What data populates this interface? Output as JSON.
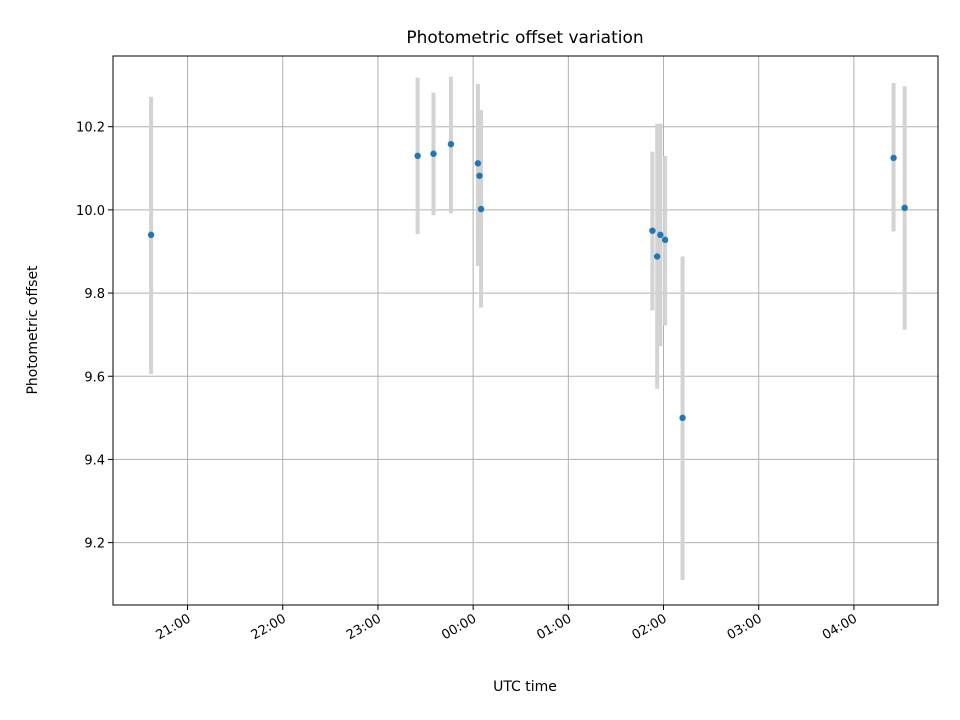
{
  "chart_data": {
    "type": "scatter",
    "title": "Photometric offset variation",
    "xlabel": "UTC time",
    "ylabel": "Photometric offset",
    "x_unit": "UTC time (hh:mm), times after midnight fall on the following day",
    "xlim": [
      "20:13",
      "04:53"
    ],
    "ylim": [
      9.05,
      10.37
    ],
    "x_ticks": [
      "21:00",
      "22:00",
      "23:00",
      "00:00",
      "01:00",
      "02:00",
      "03:00",
      "04:00"
    ],
    "y_ticks": [
      9.2,
      9.4,
      9.6,
      9.8,
      10.0,
      10.2
    ],
    "grid": true,
    "marker_color": "#1f77b4",
    "errorbar_color": "#d3d3d3",
    "points": [
      {
        "x": "20:37",
        "y": 9.94,
        "yerr_low": 9.605,
        "yerr_high": 10.272
      },
      {
        "x": "23:25",
        "y": 10.13,
        "yerr_low": 9.942,
        "yerr_high": 10.318
      },
      {
        "x": "23:35",
        "y": 10.135,
        "yerr_low": 9.987,
        "yerr_high": 10.282
      },
      {
        "x": "23:46",
        "y": 10.158,
        "yerr_low": 9.992,
        "yerr_high": 10.32
      },
      {
        "x": "00:03",
        "y": 10.112,
        "yerr_low": 9.865,
        "yerr_high": 10.303
      },
      {
        "x": "00:04",
        "y": 10.082,
        "yerr_low": 9.925,
        "yerr_high": 10.238
      },
      {
        "x": "00:05",
        "y": 10.002,
        "yerr_low": 9.765,
        "yerr_high": 10.24
      },
      {
        "x": "01:53",
        "y": 9.95,
        "yerr_low": 9.758,
        "yerr_high": 10.14
      },
      {
        "x": "01:56",
        "y": 9.888,
        "yerr_low": 9.57,
        "yerr_high": 10.207
      },
      {
        "x": "01:58",
        "y": 9.94,
        "yerr_low": 9.672,
        "yerr_high": 10.207
      },
      {
        "x": "02:01",
        "y": 9.928,
        "yerr_low": 9.722,
        "yerr_high": 10.13
      },
      {
        "x": "02:12",
        "y": 9.5,
        "yerr_low": 9.11,
        "yerr_high": 9.888
      },
      {
        "x": "04:25",
        "y": 10.125,
        "yerr_low": 9.948,
        "yerr_high": 10.305
      },
      {
        "x": "04:32",
        "y": 10.005,
        "yerr_low": 9.712,
        "yerr_high": 10.297
      }
    ]
  }
}
